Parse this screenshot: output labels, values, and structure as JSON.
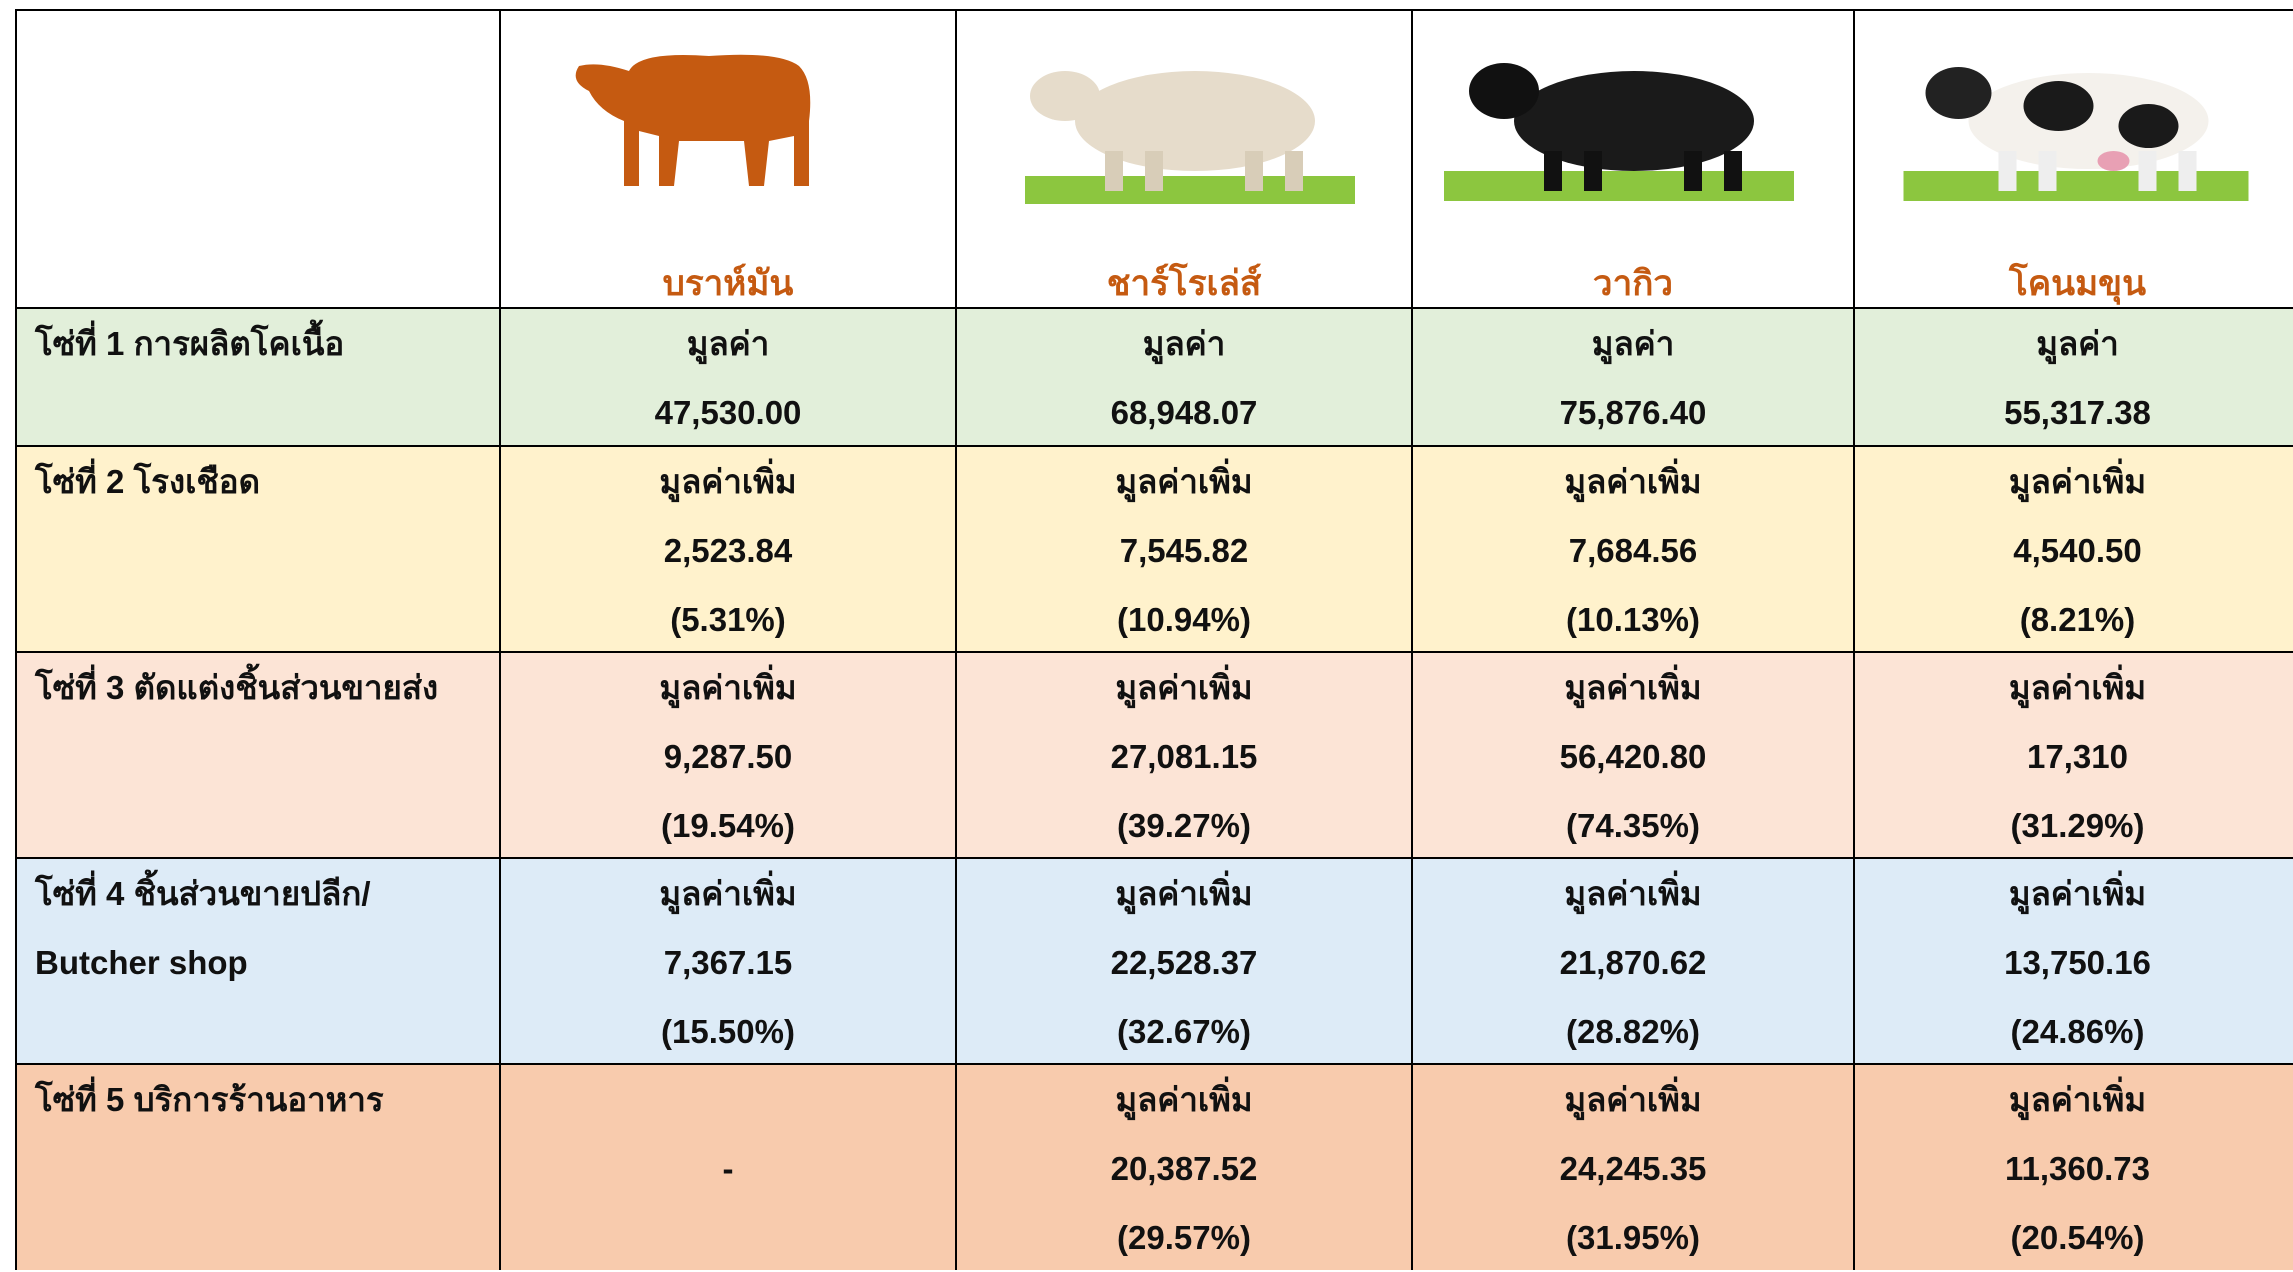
{
  "table": {
    "columns": [
      "บราห์มัน",
      "ชาร์โรเล่ส์",
      "วากิว",
      "โคนมขุน"
    ],
    "rows": [
      {
        "label": [
          "โซ่ที่ 1 การผลิตโคเนื้อ"
        ],
        "cells": [
          [
            "มูลค่า",
            "47,530.00"
          ],
          [
            "มูลค่า",
            "68,948.07"
          ],
          [
            "มูลค่า",
            "75,876.40"
          ],
          [
            "มูลค่า",
            "55,317.38"
          ]
        ]
      },
      {
        "label": [
          "โซ่ที่ 2 โรงเชือด"
        ],
        "cells": [
          [
            "มูลค่าเพิ่ม",
            "2,523.84",
            "(5.31%)"
          ],
          [
            "มูลค่าเพิ่ม",
            "7,545.82",
            "(10.94%)"
          ],
          [
            "มูลค่าเพิ่ม",
            "7,684.56",
            "(10.13%)"
          ],
          [
            "มูลค่าเพิ่ม",
            "4,540.50",
            "(8.21%)"
          ]
        ]
      },
      {
        "label": [
          "โซ่ที่ 3 ตัดแต่งชิ้นส่วนขายส่ง"
        ],
        "cells": [
          [
            "มูลค่าเพิ่ม",
            "9,287.50",
            "(19.54%)"
          ],
          [
            "มูลค่าเพิ่ม",
            "27,081.15",
            "(39.27%)"
          ],
          [
            "มูลค่าเพิ่ม",
            "56,420.80",
            "(74.35%)"
          ],
          [
            "มูลค่าเพิ่ม",
            "17,310",
            "(31.29%)"
          ]
        ]
      },
      {
        "label": [
          "โซ่ที่ 4 ชิ้นส่วนขายปลีก/",
          "Butcher shop"
        ],
        "cells": [
          [
            "มูลค่าเพิ่ม",
            "7,367.15",
            "(15.50%)"
          ],
          [
            "มูลค่าเพิ่ม",
            "22,528.37",
            "(32.67%)"
          ],
          [
            "มูลค่าเพิ่ม",
            "21,870.62",
            "(28.82%)"
          ],
          [
            "มูลค่าเพิ่ม",
            "13,750.16",
            "(24.86%)"
          ]
        ]
      },
      {
        "label": [
          "โซ่ที่ 5 บริการร้านอาหาร"
        ],
        "cells": [
          [
            "-"
          ],
          [
            "มูลค่าเพิ่ม",
            "20,387.52",
            "(29.57%)"
          ],
          [
            "มูลค่าเพิ่ม",
            "24,245.35",
            "(31.95%)"
          ],
          [
            "มูลค่าเพิ่ม",
            "11,360.73",
            "(20.54%)"
          ]
        ]
      }
    ]
  }
}
